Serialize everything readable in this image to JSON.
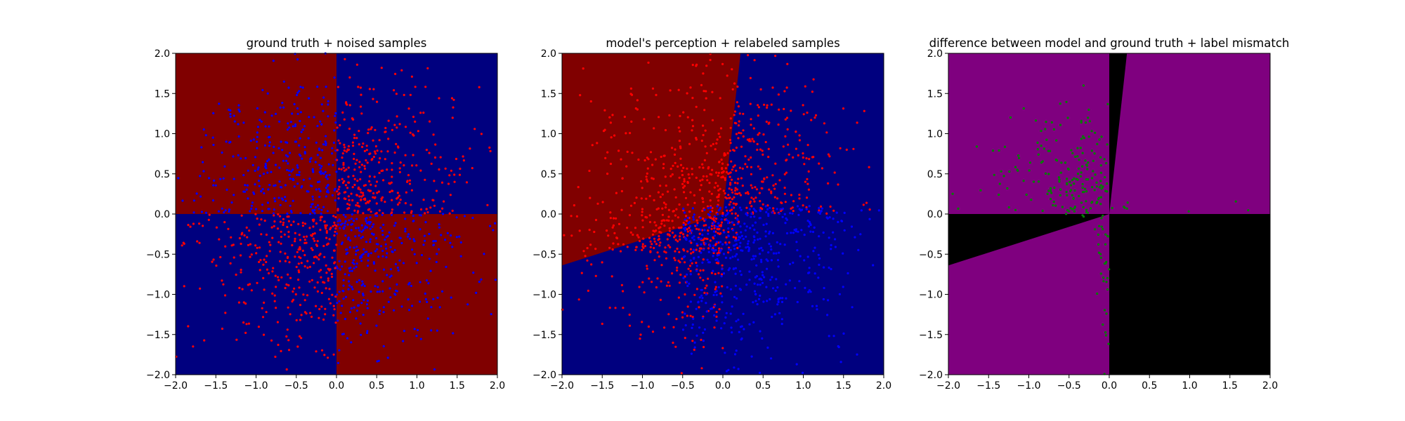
{
  "figure": {
    "background": "#ffffff"
  },
  "colors": {
    "dark_red": "#800000",
    "dark_blue": "#00007f",
    "purple": "#7f007f",
    "black": "#000000",
    "red_point": "#ff0000",
    "blue_point": "#0000ff",
    "green_point": "#008000"
  },
  "chart_data": [
    {
      "type": "scatter",
      "title": "ground truth + noised samples",
      "xlim": [
        -2.0,
        2.0
      ],
      "ylim": [
        -2.0,
        2.0
      ],
      "xticks": [
        -2.0,
        -1.5,
        -1.0,
        -0.5,
        0.0,
        0.5,
        1.0,
        1.5,
        2.0
      ],
      "yticks": [
        -2.0,
        -1.5,
        -1.0,
        -0.5,
        0.0,
        0.5,
        1.0,
        1.5,
        2.0
      ],
      "xtick_labels": [
        "−2.0",
        "−1.5",
        "−1.0",
        "−0.5",
        "0.0",
        "0.5",
        "1.0",
        "1.5",
        "2.0"
      ],
      "ytick_labels": [
        "−2.0",
        "−1.5",
        "−1.0",
        "−0.5",
        "0.0",
        "0.5",
        "1.0",
        "1.5",
        "2.0"
      ],
      "regions": [
        {
          "color": "dark_red",
          "polygon": [
            [
              -2,
              0
            ],
            [
              0,
              0
            ],
            [
              0,
              2
            ],
            [
              -2,
              2
            ]
          ]
        },
        {
          "color": "dark_blue",
          "polygon": [
            [
              0,
              0
            ],
            [
              2,
              0
            ],
            [
              2,
              2
            ],
            [
              0,
              2
            ]
          ]
        },
        {
          "color": "dark_blue",
          "polygon": [
            [
              -2,
              -2
            ],
            [
              0,
              -2
            ],
            [
              0,
              0
            ],
            [
              -2,
              0
            ]
          ]
        },
        {
          "color": "dark_red",
          "polygon": [
            [
              0,
              -2
            ],
            [
              2,
              -2
            ],
            [
              2,
              0
            ],
            [
              0,
              0
            ]
          ]
        }
      ],
      "point_clouds": [
        {
          "color": "blue_point",
          "count": 320,
          "seed": 11,
          "xy_spread": [
            0.85,
            0.85
          ],
          "region": [
            [
              -2,
              0
            ],
            [
              0,
              2
            ]
          ]
        },
        {
          "color": "red_point",
          "count": 320,
          "seed": 12,
          "xy_spread": [
            0.85,
            0.85
          ],
          "region": [
            [
              0,
              2
            ],
            [
              0,
              2
            ]
          ]
        },
        {
          "color": "red_point",
          "count": 320,
          "seed": 13,
          "xy_spread": [
            0.85,
            0.85
          ],
          "region": [
            [
              -2,
              0
            ],
            [
              -2,
              0
            ]
          ]
        },
        {
          "color": "blue_point",
          "count": 320,
          "seed": 14,
          "xy_spread": [
            0.85,
            0.85
          ],
          "region": [
            [
              0,
              2
            ],
            [
              -2,
              0
            ]
          ]
        }
      ],
      "grid": false
    },
    {
      "type": "scatter",
      "title": "model's perception + relabeled samples",
      "xlim": [
        -2.0,
        2.0
      ],
      "ylim": [
        -2.0,
        2.0
      ],
      "xticks": [
        -2.0,
        -1.5,
        -1.0,
        -0.5,
        0.0,
        0.5,
        1.0,
        1.5,
        2.0
      ],
      "yticks": [
        -2.0,
        -1.5,
        -1.0,
        -0.5,
        0.0,
        0.5,
        1.0,
        1.5,
        2.0
      ],
      "xtick_labels": [
        "−2.0",
        "−1.5",
        "−1.0",
        "−0.5",
        "0.0",
        "0.5",
        "1.0",
        "1.5",
        "2.0"
      ],
      "ytick_labels": [
        "−2.0",
        "−1.5",
        "−1.0",
        "−0.5",
        "0.0",
        "0.5",
        "1.0",
        "1.5",
        "2.0"
      ],
      "regions": [
        {
          "color": "dark_blue",
          "polygon": [
            [
              -2,
              -2
            ],
            [
              2,
              -2
            ],
            [
              2,
              2
            ],
            [
              -2,
              2
            ]
          ]
        },
        {
          "color": "dark_red",
          "polygon": [
            [
              -2,
              -0.64
            ],
            [
              0.0,
              0.0
            ],
            [
              0.22,
              2.0
            ],
            [
              -2,
              2.0
            ]
          ]
        }
      ],
      "point_clouds": [
        {
          "color": "red_point",
          "count": 420,
          "seed": 21,
          "xy_spread": [
            0.85,
            0.85
          ],
          "region": [
            [
              -2,
              0.2
            ],
            [
              -0.5,
              2
            ]
          ]
        },
        {
          "color": "red_point",
          "count": 240,
          "seed": 22,
          "xy_spread": [
            0.8,
            0.8
          ],
          "region": [
            [
              0,
              2
            ],
            [
              0,
              2
            ]
          ]
        },
        {
          "color": "red_point",
          "count": 220,
          "seed": 23,
          "xy_spread": [
            0.8,
            0.8
          ],
          "region": [
            [
              -2,
              0
            ],
            [
              -2,
              0
            ]
          ]
        },
        {
          "color": "blue_point",
          "count": 480,
          "seed": 24,
          "xy_spread": [
            0.85,
            0.85
          ],
          "region": [
            [
              -0.5,
              2
            ],
            [
              -2,
              0.1
            ]
          ]
        }
      ],
      "grid": false
    },
    {
      "type": "scatter",
      "title": "difference between model and ground truth + label mismatch",
      "xlim": [
        -2.0,
        2.0
      ],
      "ylim": [
        -2.0,
        2.0
      ],
      "xticks": [
        -2.0,
        -1.5,
        -1.0,
        -0.5,
        0.0,
        0.5,
        1.0,
        1.5,
        2.0
      ],
      "yticks": [
        -2.0,
        -1.5,
        -1.0,
        -0.5,
        0.0,
        0.5,
        1.0,
        1.5,
        2.0
      ],
      "xtick_labels": [
        "−2.0",
        "−1.5",
        "−1.0",
        "−0.5",
        "0.0",
        "0.5",
        "1.0",
        "1.5",
        "2.0"
      ],
      "ytick_labels": [
        "−2.0",
        "−1.5",
        "−1.0",
        "−0.5",
        "0.0",
        "0.5",
        "1.0",
        "1.5",
        "2.0"
      ],
      "regions": [
        {
          "color": "purple",
          "polygon": [
            [
              -2,
              -2
            ],
            [
              2,
              -2
            ],
            [
              2,
              2
            ],
            [
              -2,
              2
            ]
          ]
        },
        {
          "color": "black",
          "polygon": [
            [
              0,
              -2
            ],
            [
              2,
              -2
            ],
            [
              2,
              0
            ],
            [
              0,
              0
            ]
          ]
        },
        {
          "color": "black",
          "polygon": [
            [
              0,
              0
            ],
            [
              0,
              2
            ],
            [
              0.22,
              2
            ]
          ]
        },
        {
          "color": "black",
          "polygon": [
            [
              -2,
              -0.64
            ],
            [
              0,
              0
            ],
            [
              -2,
              0
            ]
          ]
        }
      ],
      "point_clouds": [
        {
          "color": "green_point",
          "count": 190,
          "seed": 31,
          "xy_spread": [
            0.7,
            0.6
          ],
          "region": [
            [
              -2,
              0
            ],
            [
              0,
              2
            ]
          ]
        },
        {
          "color": "green_point",
          "count": 35,
          "seed": 32,
          "xy_spread": [
            0.12,
            0.9
          ],
          "region": [
            [
              -0.35,
              0
            ],
            [
              -2,
              0
            ]
          ]
        },
        {
          "color": "green_point",
          "count": 8,
          "seed": 33,
          "xy_spread": [
            0.8,
            0.1
          ],
          "region": [
            [
              0,
              2
            ],
            [
              0,
              0.2
            ]
          ]
        }
      ],
      "grid": false
    }
  ]
}
